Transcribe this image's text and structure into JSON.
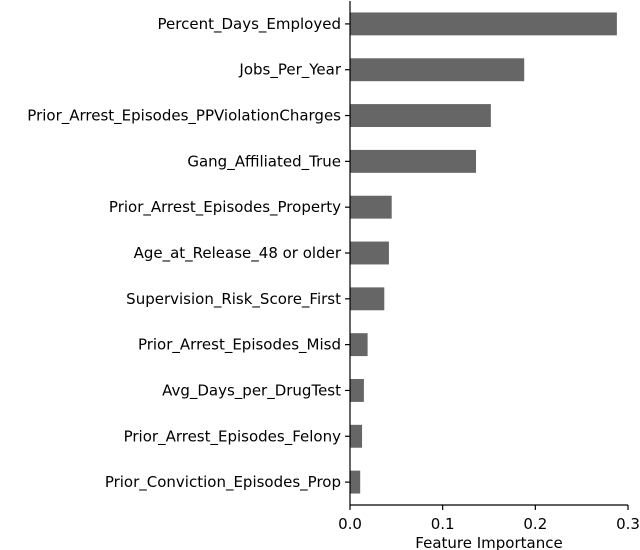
{
  "chart_data": {
    "type": "bar",
    "orientation": "horizontal",
    "title": "",
    "xlabel": "Feature Importance",
    "ylabel": "",
    "xlim": [
      0,
      0.3
    ],
    "xticks": [
      0.0,
      0.1,
      0.2,
      0.3
    ],
    "xtick_labels": [
      "0.0",
      "0.1",
      "0.2",
      "0.3"
    ],
    "grid": false,
    "bar_color": "#666666",
    "categories": [
      "Percent_Days_Employed",
      "Jobs_Per_Year",
      "Prior_Arrest_Episodes_PPViolationCharges",
      "Gang_Affiliated_True",
      "Prior_Arrest_Episodes_Property",
      "Age_at_Release_48 or older",
      "Supervision_Risk_Score_First",
      "Prior_Arrest_Episodes_Misd",
      "Avg_Days_per_DrugTest",
      "Prior_Arrest_Episodes_Felony",
      "Prior_Conviction_Episodes_Prop"
    ],
    "values": [
      0.288,
      0.188,
      0.152,
      0.136,
      0.045,
      0.042,
      0.037,
      0.019,
      0.015,
      0.013,
      0.011
    ]
  }
}
